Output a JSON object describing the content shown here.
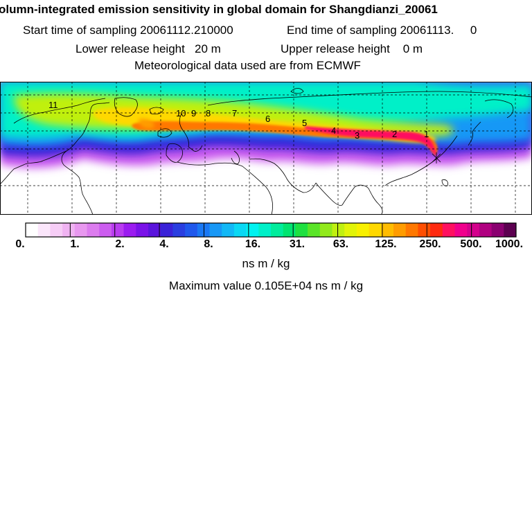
{
  "header": {
    "title": "olumn-integrated emission sensitivity in global domain for Shangdianzi_20061",
    "start_label": "Start time of sampling 20061112.210000",
    "end_label": "End time of sampling 20061113.     0",
    "lower_label": "Lower release height   20 m",
    "upper_label": "Upper release height    0 m",
    "met_label": "Meteorological data used are from ECMWF"
  },
  "map": {
    "trajectory_labels": [
      "1",
      "2",
      "3",
      "4",
      "5",
      "6",
      "7",
      "8",
      "9",
      "10",
      "11"
    ],
    "source": "Shangdianzi"
  },
  "legend": {
    "ticks": [
      "0.",
      "1.",
      "2.",
      "4.",
      "8.",
      "16.",
      "31.",
      "63.",
      "125.",
      "250.",
      "500.",
      "1000."
    ],
    "units": "ns m / kg",
    "max_value": "Maximum value  0.105E+04 ns m / kg",
    "colors": [
      "#ffffff",
      "#fbe6fb",
      "#f6cdf6",
      "#f0b3f2",
      "#e898ef",
      "#dc7cee",
      "#cc5def",
      "#b93cf0",
      "#9b1cf0",
      "#7a12e8",
      "#5a14dc",
      "#3a22d8",
      "#2a3ee0",
      "#2058ec",
      "#1a78f4",
      "#1898f6",
      "#12b8f6",
      "#0ad8f4",
      "#00f2f0",
      "#00f0c8",
      "#00ec9c",
      "#00e470",
      "#1ee040",
      "#5ae428",
      "#92ea1c",
      "#c0f010",
      "#e2f408",
      "#f8f000",
      "#ffd800",
      "#ffbc00",
      "#ff9c00",
      "#ff7800",
      "#ff4e00",
      "#ff2a10",
      "#ff1060",
      "#f0008c",
      "#d4008c",
      "#b00080",
      "#8a0070",
      "#5c0050"
    ]
  }
}
